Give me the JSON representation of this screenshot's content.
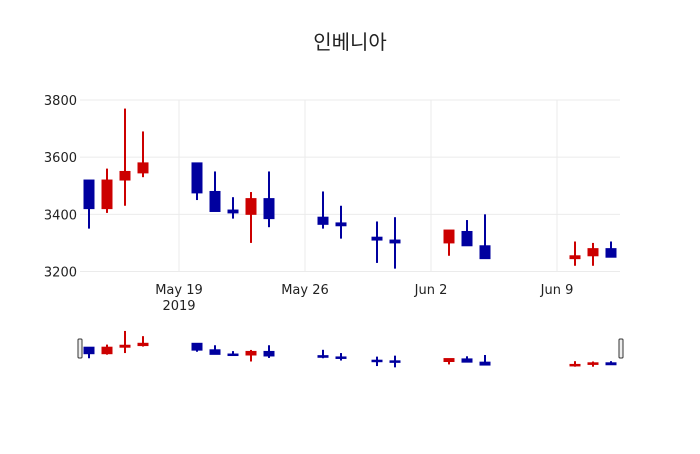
{
  "chart_data": {
    "type": "candlestick",
    "title": "인베니아",
    "xlabel": "",
    "ylabel": "",
    "ylim": [
      3200,
      3800
    ],
    "xlim": [
      "2019-05-13T12:00",
      "2019-06-12T12:00"
    ],
    "grid": true,
    "yticks": [
      3200,
      3400,
      3600,
      3800
    ],
    "xticks": [
      {
        "date": "2019-05-19",
        "label": "May 19",
        "sublabel": "2019"
      },
      {
        "date": "2019-05-26",
        "label": "May 26",
        "sublabel": ""
      },
      {
        "date": "2019-06-02",
        "label": "Jun 2",
        "sublabel": ""
      },
      {
        "date": "2019-06-09",
        "label": "Jun 9",
        "sublabel": ""
      }
    ],
    "increasing_color": "#cc0000",
    "decreasing_color": "#00009f",
    "rangeslider": true,
    "candles": [
      {
        "date": "2019-05-14",
        "open": 3520,
        "high": 3520,
        "low": 3350,
        "close": 3420
      },
      {
        "date": "2019-05-15",
        "open": 3420,
        "high": 3560,
        "low": 3405,
        "close": 3520
      },
      {
        "date": "2019-05-16",
        "open": 3520,
        "high": 3770,
        "low": 3430,
        "close": 3550
      },
      {
        "date": "2019-05-17",
        "open": 3545,
        "high": 3690,
        "low": 3530,
        "close": 3580
      },
      {
        "date": "2019-05-20",
        "open": 3580,
        "high": 3580,
        "low": 3450,
        "close": 3475
      },
      {
        "date": "2019-05-21",
        "open": 3480,
        "high": 3550,
        "low": 3410,
        "close": 3410
      },
      {
        "date": "2019-05-22",
        "open": 3415,
        "high": 3460,
        "low": 3385,
        "close": 3405
      },
      {
        "date": "2019-05-23",
        "open": 3400,
        "high": 3478,
        "low": 3300,
        "close": 3455
      },
      {
        "date": "2019-05-24",
        "open": 3455,
        "high": 3550,
        "low": 3355,
        "close": 3385
      },
      {
        "date": "2019-05-27",
        "open": 3390,
        "high": 3480,
        "low": 3350,
        "close": 3365
      },
      {
        "date": "2019-05-28",
        "open": 3370,
        "high": 3430,
        "low": 3315,
        "close": 3360
      },
      {
        "date": "2019-05-30",
        "open": 3320,
        "high": 3375,
        "low": 3230,
        "close": 3310
      },
      {
        "date": "2019-05-31",
        "open": 3310,
        "high": 3390,
        "low": 3210,
        "close": 3300
      },
      {
        "date": "2019-06-03",
        "open": 3300,
        "high": 3345,
        "low": 3255,
        "close": 3345
      },
      {
        "date": "2019-06-04",
        "open": 3340,
        "high": 3380,
        "low": 3290,
        "close": 3290
      },
      {
        "date": "2019-06-05",
        "open": 3290,
        "high": 3400,
        "low": 3245,
        "close": 3245
      },
      {
        "date": "2019-06-10",
        "open": 3245,
        "high": 3305,
        "low": 3220,
        "close": 3255
      },
      {
        "date": "2019-06-11",
        "open": 3255,
        "high": 3300,
        "low": 3220,
        "close": 3280
      },
      {
        "date": "2019-06-12",
        "open": 3280,
        "high": 3305,
        "low": 3250,
        "close": 3250
      }
    ]
  }
}
